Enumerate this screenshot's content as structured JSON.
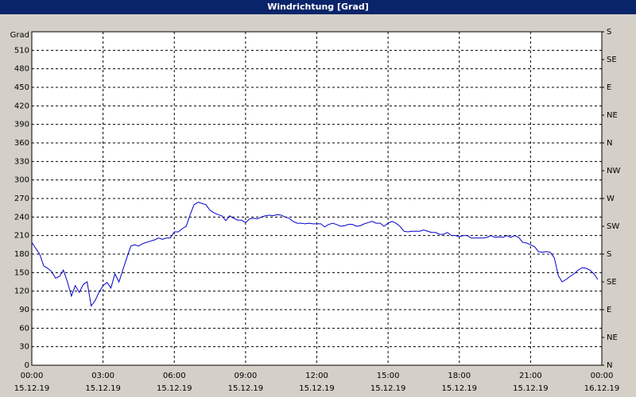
{
  "chart_data": {
    "type": "line",
    "title": "Windrichtung [Grad]",
    "y_label": "Grad",
    "color": "#0000c8",
    "grid": true,
    "x": [
      0,
      0.17,
      0.33,
      0.5,
      0.67,
      0.83,
      1,
      1.17,
      1.33,
      1.5,
      1.67,
      1.83,
      2,
      2.17,
      2.33,
      2.5,
      2.67,
      2.83,
      3,
      3.17,
      3.33,
      3.5,
      3.67,
      3.83,
      4,
      4.17,
      4.33,
      4.5,
      4.67,
      4.83,
      5,
      5.17,
      5.33,
      5.5,
      5.67,
      5.83,
      6,
      6.17,
      6.33,
      6.5,
      6.67,
      6.83,
      7,
      7.17,
      7.33,
      7.5,
      7.67,
      7.83,
      8,
      8.17,
      8.33,
      8.5,
      8.67,
      8.83,
      9,
      9.17,
      9.33,
      9.5,
      9.67,
      9.83,
      10,
      10.17,
      10.33,
      10.5,
      10.67,
      10.83,
      11,
      11.17,
      11.33,
      11.5,
      11.67,
      11.83,
      12,
      12.17,
      12.33,
      12.5,
      12.67,
      12.83,
      13,
      13.17,
      13.33,
      13.5,
      13.67,
      13.83,
      14,
      14.17,
      14.33,
      14.5,
      14.67,
      14.83,
      15,
      15.17,
      15.33,
      15.5,
      15.67,
      15.83,
      16,
      16.17,
      16.33,
      16.5,
      16.67,
      16.83,
      17,
      17.17,
      17.33,
      17.5,
      17.67,
      17.83,
      18,
      18.17,
      18.33,
      18.5,
      18.67,
      18.83,
      19,
      19.17,
      19.33,
      19.5,
      19.67,
      19.83,
      20,
      20.17,
      20.33,
      20.5,
      20.67,
      20.83,
      21,
      21.17,
      21.33,
      21.5,
      21.67,
      21.83,
      22,
      22.17,
      22.33,
      22.5,
      22.67,
      22.83,
      23,
      23.17,
      23.33,
      23.5,
      23.67,
      23.83
    ],
    "values": [
      199,
      189,
      180,
      161,
      157,
      152,
      141,
      144,
      154,
      135,
      112,
      129,
      118,
      131,
      135,
      96,
      105,
      118,
      129,
      134,
      125,
      148,
      135,
      154,
      174,
      193,
      195,
      193,
      197,
      199,
      201,
      203,
      206,
      204,
      206,
      206,
      216,
      216,
      221,
      225,
      244,
      260,
      264,
      262,
      260,
      251,
      247,
      244,
      242,
      234,
      242,
      238,
      235,
      235,
      231,
      237,
      238,
      237,
      240,
      242,
      243,
      242,
      244,
      243,
      240,
      238,
      233,
      230,
      230,
      229,
      230,
      229,
      229,
      229,
      224,
      228,
      230,
      228,
      225,
      226,
      228,
      228,
      225,
      226,
      229,
      231,
      233,
      230,
      230,
      225,
      230,
      233,
      230,
      225,
      217,
      216,
      217,
      217,
      217,
      219,
      217,
      215,
      215,
      212,
      212,
      215,
      210,
      210,
      208,
      210,
      210,
      206,
      206,
      206,
      206,
      207,
      210,
      207,
      208,
      207,
      210,
      207,
      210,
      207,
      199,
      198,
      195,
      192,
      184,
      183,
      184,
      183,
      174,
      145,
      135,
      139,
      144,
      148,
      154,
      158,
      157,
      154,
      148,
      139
    ],
    "xlim": [
      0,
      24
    ],
    "xticks": [
      {
        "value": 0,
        "label": [
          "00:00",
          "15.12.19"
        ]
      },
      {
        "value": 3,
        "label": [
          "03:00",
          "15.12.19"
        ]
      },
      {
        "value": 6,
        "label": [
          "06:00",
          "15.12.19"
        ]
      },
      {
        "value": 9,
        "label": [
          "09:00",
          "15.12.19"
        ]
      },
      {
        "value": 12,
        "label": [
          "12:00",
          "15.12.19"
        ]
      },
      {
        "value": 15,
        "label": [
          "15:00",
          "15.12.19"
        ]
      },
      {
        "value": 18,
        "label": [
          "18:00",
          "15.12.19"
        ]
      },
      {
        "value": 21,
        "label": [
          "21:00",
          "15.12.19"
        ]
      },
      {
        "value": 24,
        "label": [
          "00:00",
          "16.12.19"
        ]
      }
    ],
    "ylim": [
      0,
      540
    ],
    "yticks": [
      0,
      30,
      60,
      90,
      120,
      150,
      180,
      210,
      240,
      270,
      300,
      330,
      360,
      390,
      420,
      450,
      480,
      510
    ],
    "y2lim": [
      0,
      540
    ],
    "y2ticks": [
      {
        "value": 0,
        "label": "N"
      },
      {
        "value": 45,
        "label": "NE"
      },
      {
        "value": 90,
        "label": "E"
      },
      {
        "value": 135,
        "label": "SE"
      },
      {
        "value": 180,
        "label": "S"
      },
      {
        "value": 225,
        "label": "SW"
      },
      {
        "value": 270,
        "label": "W"
      },
      {
        "value": 315,
        "label": "NW"
      },
      {
        "value": 360,
        "label": "N"
      },
      {
        "value": 405,
        "label": "NE"
      },
      {
        "value": 450,
        "label": "E"
      },
      {
        "value": 495,
        "label": "SE"
      },
      {
        "value": 540,
        "label": "S"
      }
    ]
  }
}
